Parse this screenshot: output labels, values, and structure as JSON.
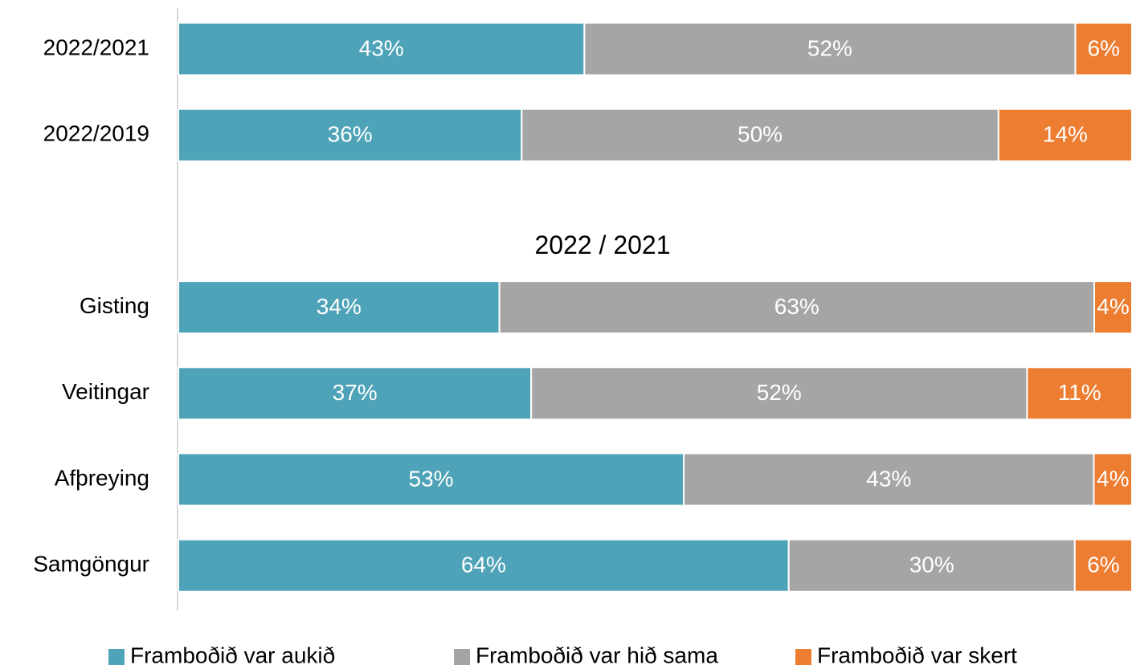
{
  "chart_data": {
    "type": "bar",
    "orientation": "horizontal",
    "stacking": "percent",
    "categories": [
      "2022/2021",
      "2022/2019",
      null,
      "Gisting",
      "Veitingar",
      "Afþreying",
      "Samgöngur"
    ],
    "annotation": "2022 / 2021",
    "series": [
      {
        "name": "Framboðið var aukið",
        "color": "#4ea3b8",
        "values": [
          43,
          36,
          null,
          34,
          37,
          53,
          64
        ],
        "value_labels": [
          "43%",
          "36%",
          null,
          "34%",
          "37%",
          "53%",
          "64%"
        ]
      },
      {
        "name": "Framboðið var hið sama",
        "color": "#a5a5a5",
        "values": [
          52,
          50,
          null,
          63,
          52,
          43,
          30
        ],
        "value_labels": [
          "52%",
          "50%",
          null,
          "63%",
          "52%",
          "43%",
          "30%"
        ]
      },
      {
        "name": "Framboðið var skert",
        "color": "#ed7d31",
        "values": [
          6,
          14,
          null,
          4,
          11,
          4,
          6
        ],
        "value_labels": [
          "6%",
          "14%",
          null,
          "4%",
          "11%",
          "4%",
          "6%"
        ]
      }
    ],
    "legend": "bottom"
  }
}
